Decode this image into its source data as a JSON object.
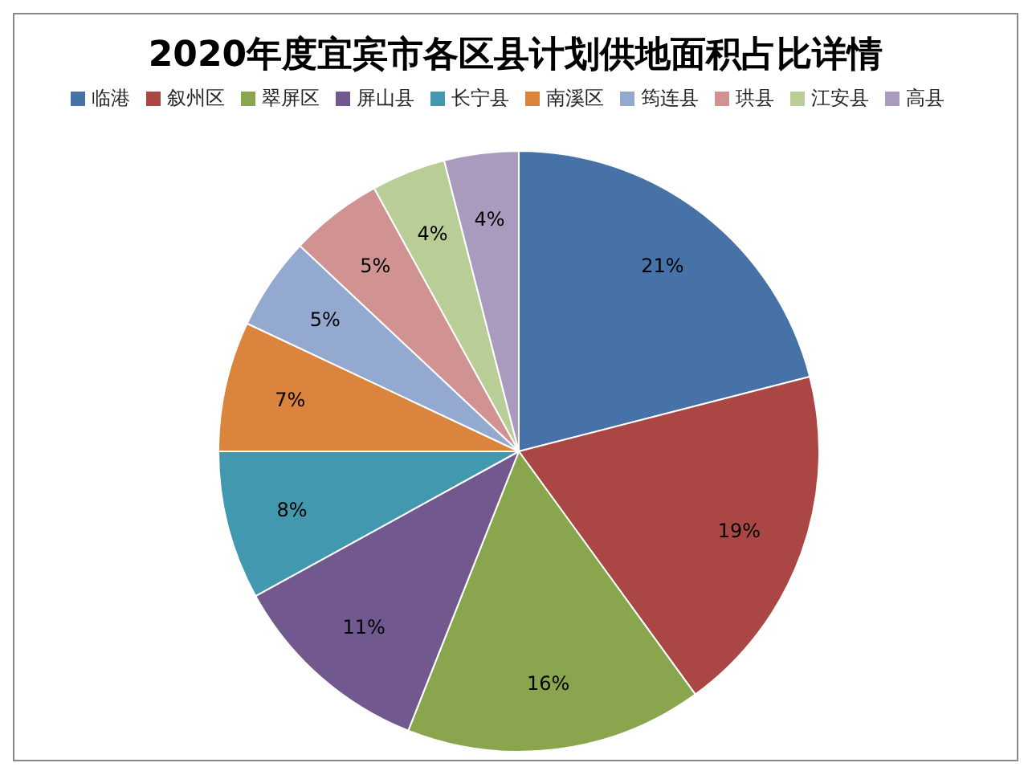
{
  "chart_data": {
    "type": "pie",
    "title": "2020年度宜宾市各区县计划供地面积占比详情",
    "categories": [
      "临港",
      "叙州区",
      "翠屏区",
      "屏山县",
      "长宁县",
      "南溪区",
      "筠连县",
      "珙县",
      "江安县",
      "高县"
    ],
    "values": [
      21,
      19,
      16,
      11,
      8,
      7,
      5,
      5,
      4,
      4
    ],
    "colors": [
      "#4672a8",
      "#aa4644",
      "#89a54e",
      "#71588f",
      "#4298af",
      "#db843d",
      "#93a9cf",
      "#d19392",
      "#b9cd96",
      "#a99bbd"
    ],
    "value_labels": [
      "21%",
      "19%",
      "16%",
      "11%",
      "8%",
      "7%",
      "5%",
      "5%",
      "4%",
      "4%"
    ],
    "legend": "top"
  }
}
